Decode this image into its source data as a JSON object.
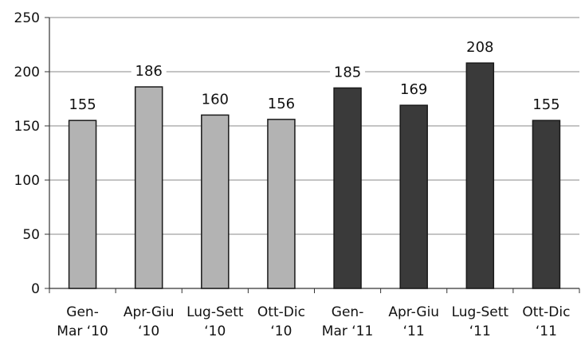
{
  "chart_data": {
    "type": "bar",
    "categories": [
      [
        "Gen-",
        "Mar ‘10"
      ],
      [
        "Apr-Giu",
        "‘10"
      ],
      [
        "Lug-Sett",
        "‘10"
      ],
      [
        "Ott-Dic",
        "‘10"
      ],
      [
        "Gen-",
        "Mar ‘11"
      ],
      [
        "Apr-Giu",
        "‘11"
      ],
      [
        "Lug-Sett",
        "‘11"
      ],
      [
        "Ott-Dic",
        "‘11"
      ]
    ],
    "values": [
      155,
      186,
      160,
      156,
      185,
      169,
      208,
      155
    ],
    "bar_colors": [
      "#b3b3b3",
      "#b3b3b3",
      "#b3b3b3",
      "#b3b3b3",
      "#3a3a3a",
      "#3a3a3a",
      "#3a3a3a",
      "#3a3a3a"
    ],
    "title": "",
    "xlabel": "",
    "ylabel": "",
    "ylim": [
      0,
      250
    ],
    "yticks": [
      0,
      50,
      100,
      150,
      200,
      250
    ],
    "grid": true,
    "legend": "none"
  }
}
